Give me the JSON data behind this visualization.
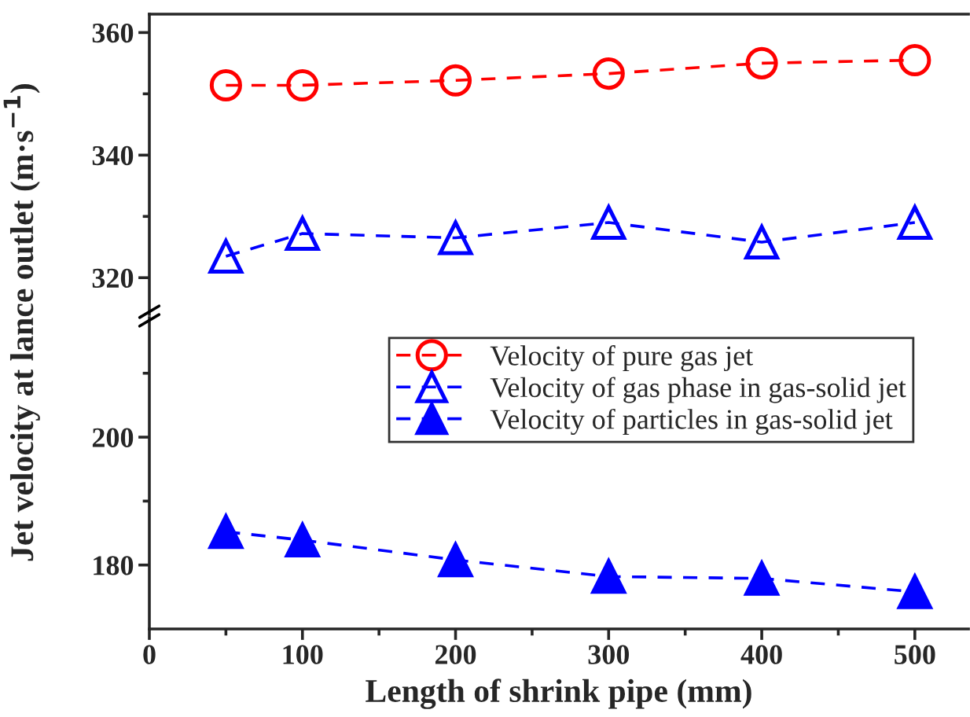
{
  "chart_data": [
    {
      "type": "line",
      "ylabel": "Jet velocity at lance outlet (m·s$^{−1}$)",
      "x": [
        50,
        100,
        200,
        300,
        400,
        500
      ],
      "xlim": [
        0,
        535
      ],
      "ylim": [
        314,
        363
      ],
      "yticks": [
        320,
        {
          "value": 330,
          "label": null
        },
        340,
        {
          "value": 350,
          "label": null
        },
        360
      ],
      "tick_labels": "y",
      "line_style": "dashed",
      "grid": false,
      "legend": "bottom right",
      "series": [
        {
          "name": "Velocity of pure gas jet",
          "color": "#ff0000",
          "marker": "circle",
          "values": [
            351.4,
            351.4,
            352.2,
            353.3,
            355.0,
            355.5
          ]
        },
        {
          "name": "Velocity of gas phase in gas-solid jet",
          "color": "#0000ff",
          "marker": "triangle",
          "values": [
            323.5,
            327.2,
            326.5,
            329.0,
            325.8,
            329.0
          ]
        }
      ]
    },
    {
      "type": "line",
      "xlabel": "Length of shrink pipe (mm)",
      "x": [
        50,
        100,
        200,
        300,
        400,
        500
      ],
      "xlim": [
        0,
        535
      ],
      "xticks": [
        0,
        {
          "value": 50,
          "label": null
        },
        100,
        {
          "value": 150,
          "label": null
        },
        200,
        {
          "value": 250,
          "label": null
        },
        300,
        {
          "value": 350,
          "label": null
        },
        400,
        {
          "value": 450,
          "label": null
        },
        500
      ],
      "ylim": [
        170,
        218.7
      ],
      "yticks": [
        180,
        {
          "value": 190,
          "label": null
        },
        200,
        {
          "value": 210,
          "label": null
        }
      ],
      "line_style": "dashed",
      "grid": false,
      "legend": "top right",
      "series": [
        {
          "name": "Velocity of particles in gas-solid jet",
          "color": "#0000ff",
          "marker": "triangle",
          "values": [
            185.2,
            183.9,
            180.8,
            178.2,
            177.9,
            175.8
          ]
        }
      ]
    }
  ]
}
